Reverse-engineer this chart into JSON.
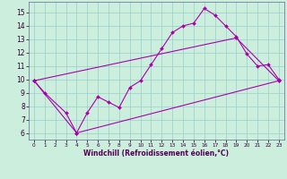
{
  "xlabel": "Windchill (Refroidissement éolien,°C)",
  "bg_color": "#cceedd",
  "line_color": "#aa00aa",
  "xlim": [
    -0.5,
    23.5
  ],
  "ylim": [
    5.5,
    15.8
  ],
  "yticks": [
    6,
    7,
    8,
    9,
    10,
    11,
    12,
    13,
    14,
    15
  ],
  "xticks": [
    0,
    1,
    2,
    3,
    4,
    5,
    6,
    7,
    8,
    9,
    10,
    11,
    12,
    13,
    14,
    15,
    16,
    17,
    18,
    19,
    20,
    21,
    22,
    23
  ],
  "line1_x": [
    0,
    1,
    3,
    4,
    5,
    6,
    7,
    8,
    9,
    10,
    11,
    12,
    13,
    14,
    15,
    16,
    17,
    18,
    19,
    20,
    21,
    22,
    23
  ],
  "line1_y": [
    9.9,
    9.0,
    7.5,
    6.0,
    7.5,
    8.7,
    8.3,
    7.9,
    9.4,
    9.9,
    11.1,
    12.3,
    13.5,
    14.0,
    14.2,
    15.3,
    14.8,
    14.0,
    13.2,
    11.9,
    11.0,
    11.1,
    10.0
  ],
  "line2_x": [
    0,
    4,
    23
  ],
  "line2_y": [
    9.9,
    6.0,
    9.9
  ],
  "line3_x": [
    0,
    19,
    23
  ],
  "line3_y": [
    9.9,
    13.1,
    9.9
  ],
  "grid_color": "#99cccc"
}
